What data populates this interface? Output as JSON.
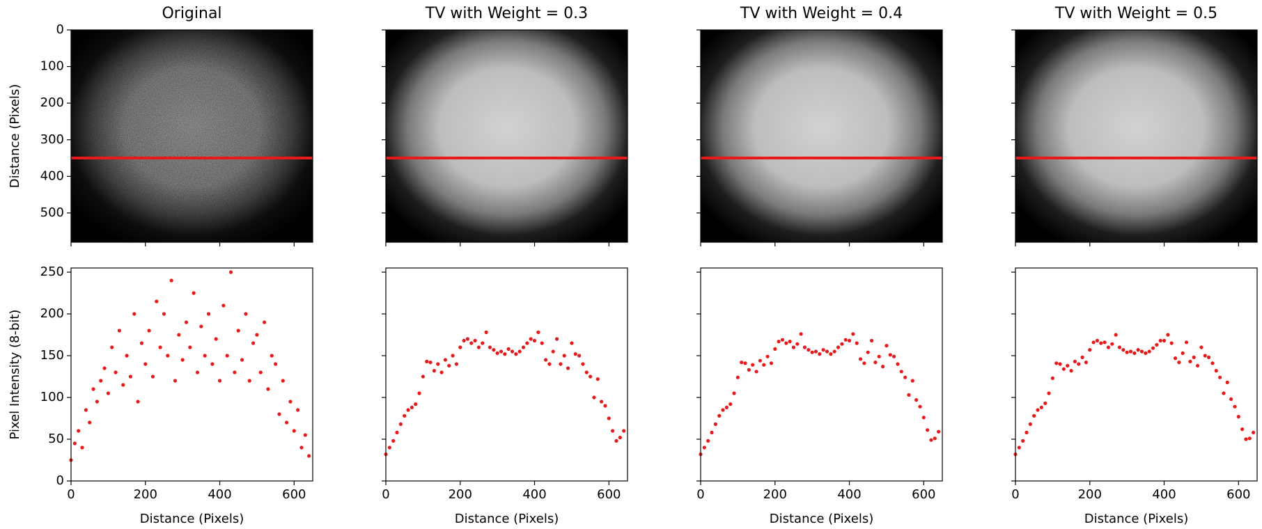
{
  "chart_data": [
    {
      "type": "image",
      "title": "Original",
      "ylabel": "Distance (Pixels)",
      "noise": true,
      "xlim": [
        0,
        650
      ],
      "ylim": [
        580,
        0
      ],
      "xticks": [
        0,
        200,
        400,
        600
      ],
      "yticks": [
        0,
        100,
        200,
        300,
        400,
        500
      ],
      "xtick_labels": false,
      "ytick_labels": true,
      "hline": 350,
      "hline_color": "#e8191b"
    },
    {
      "type": "image",
      "title": "TV with Weight = 0.3",
      "noise": false,
      "xlim": [
        0,
        650
      ],
      "ylim": [
        580,
        0
      ],
      "xticks": [
        0,
        200,
        400,
        600
      ],
      "yticks": [
        0,
        100,
        200,
        300,
        400,
        500
      ],
      "xtick_labels": false,
      "ytick_labels": false,
      "hline": 350,
      "hline_color": "#e8191b"
    },
    {
      "type": "image",
      "title": "TV with Weight = 0.4",
      "noise": false,
      "xlim": [
        0,
        650
      ],
      "ylim": [
        580,
        0
      ],
      "xticks": [
        0,
        200,
        400,
        600
      ],
      "yticks": [
        0,
        100,
        200,
        300,
        400,
        500
      ],
      "xtick_labels": false,
      "ytick_labels": false,
      "hline": 350,
      "hline_color": "#e8191b"
    },
    {
      "type": "image",
      "title": "TV with Weight = 0.5",
      "noise": false,
      "xlim": [
        0,
        650
      ],
      "ylim": [
        580,
        0
      ],
      "xticks": [
        0,
        200,
        400,
        600
      ],
      "yticks": [
        0,
        100,
        200,
        300,
        400,
        500
      ],
      "xtick_labels": false,
      "ytick_labels": false,
      "hline": 350,
      "hline_color": "#e8191b"
    },
    {
      "type": "scatter",
      "xlabel": "Distance (Pixels)",
      "ylabel": "Pixel Intensity (8-bit)",
      "xlim": [
        0,
        650
      ],
      "ylim": [
        0,
        255
      ],
      "xticks": [
        0,
        200,
        400,
        600
      ],
      "yticks": [
        0,
        50,
        100,
        150,
        200,
        250
      ],
      "xtick_labels": true,
      "ytick_labels": true,
      "color": "#e8191b",
      "x": [
        0,
        10,
        20,
        30,
        40,
        50,
        60,
        70,
        80,
        90,
        100,
        110,
        120,
        130,
        140,
        150,
        160,
        170,
        180,
        190,
        200,
        210,
        220,
        230,
        240,
        250,
        260,
        270,
        280,
        290,
        300,
        310,
        320,
        330,
        340,
        350,
        360,
        370,
        380,
        390,
        400,
        410,
        420,
        430,
        440,
        450,
        460,
        470,
        480,
        490,
        500,
        510,
        520,
        530,
        540,
        550,
        560,
        570,
        580,
        590,
        600,
        610,
        620,
        630,
        640
      ],
      "values": [
        25,
        45,
        60,
        40,
        85,
        70,
        110,
        95,
        120,
        135,
        105,
        160,
        130,
        180,
        115,
        150,
        125,
        200,
        95,
        165,
        140,
        180,
        125,
        215,
        160,
        200,
        150,
        240,
        120,
        175,
        145,
        190,
        160,
        225,
        130,
        185,
        150,
        200,
        140,
        170,
        120,
        210,
        150,
        250,
        130,
        180,
        145,
        200,
        120,
        165,
        175,
        130,
        190,
        110,
        150,
        140,
        80,
        120,
        70,
        95,
        60,
        85,
        40,
        55,
        30
      ]
    },
    {
      "type": "scatter",
      "xlabel": "Distance (Pixels)",
      "xlim": [
        0,
        650
      ],
      "ylim": [
        0,
        255
      ],
      "xticks": [
        0,
        200,
        400,
        600
      ],
      "yticks": [
        0,
        50,
        100,
        150,
        200,
        250
      ],
      "xtick_labels": true,
      "ytick_labels": false,
      "color": "#e8191b",
      "x": [
        0,
        10,
        20,
        30,
        40,
        50,
        60,
        70,
        80,
        90,
        100,
        110,
        120,
        130,
        140,
        150,
        160,
        170,
        180,
        190,
        200,
        210,
        220,
        230,
        240,
        250,
        260,
        270,
        280,
        290,
        300,
        310,
        320,
        330,
        340,
        350,
        360,
        370,
        380,
        390,
        400,
        410,
        420,
        430,
        440,
        450,
        460,
        470,
        480,
        490,
        500,
        510,
        520,
        530,
        540,
        550,
        560,
        570,
        580,
        590,
        600,
        610,
        620,
        630,
        640
      ],
      "values": [
        32,
        40,
        48,
        58,
        68,
        78,
        85,
        88,
        92,
        105,
        125,
        143,
        142,
        132,
        140,
        130,
        145,
        138,
        150,
        140,
        160,
        168,
        170,
        165,
        168,
        160,
        165,
        178,
        160,
        157,
        153,
        155,
        152,
        158,
        155,
        152,
        155,
        160,
        165,
        170,
        168,
        178,
        165,
        145,
        140,
        155,
        170,
        140,
        150,
        135,
        165,
        152,
        150,
        140,
        130,
        125,
        100,
        122,
        95,
        90,
        75,
        60,
        48,
        52,
        60
      ]
    },
    {
      "type": "scatter",
      "xlabel": "Distance (Pixels)",
      "xlim": [
        0,
        650
      ],
      "ylim": [
        0,
        255
      ],
      "xticks": [
        0,
        200,
        400,
        600
      ],
      "yticks": [
        0,
        50,
        100,
        150,
        200,
        250
      ],
      "xtick_labels": true,
      "ytick_labels": false,
      "color": "#e8191b",
      "x": [
        0,
        10,
        20,
        30,
        40,
        50,
        60,
        70,
        80,
        90,
        100,
        110,
        120,
        130,
        140,
        150,
        160,
        170,
        180,
        190,
        200,
        210,
        220,
        230,
        240,
        250,
        260,
        270,
        280,
        290,
        300,
        310,
        320,
        330,
        340,
        350,
        360,
        370,
        380,
        390,
        400,
        410,
        420,
        430,
        440,
        450,
        460,
        470,
        480,
        490,
        500,
        510,
        520,
        530,
        540,
        550,
        560,
        570,
        580,
        590,
        600,
        610,
        620,
        630,
        640
      ],
      "values": [
        32,
        40,
        48,
        58,
        68,
        78,
        85,
        88,
        92,
        105,
        124,
        142,
        141,
        133,
        139,
        131,
        144,
        139,
        149,
        141,
        158,
        167,
        169,
        165,
        167,
        160,
        164,
        176,
        160,
        157,
        154,
        155,
        152,
        157,
        155,
        152,
        155,
        160,
        164,
        169,
        168,
        176,
        165,
        146,
        141,
        154,
        168,
        142,
        149,
        137,
        162,
        151,
        149,
        140,
        131,
        124,
        103,
        120,
        97,
        89,
        76,
        61,
        49,
        51,
        59
      ]
    },
    {
      "type": "scatter",
      "xlabel": "Distance (Pixels)",
      "xlim": [
        0,
        650
      ],
      "ylim": [
        0,
        255
      ],
      "xticks": [
        0,
        200,
        400,
        600
      ],
      "yticks": [
        0,
        50,
        100,
        150,
        200,
        250
      ],
      "xtick_labels": true,
      "ytick_labels": false,
      "color": "#e8191b",
      "x": [
        0,
        10,
        20,
        30,
        40,
        50,
        60,
        70,
        80,
        90,
        100,
        110,
        120,
        130,
        140,
        150,
        160,
        170,
        180,
        190,
        200,
        210,
        220,
        230,
        240,
        250,
        260,
        270,
        280,
        290,
        300,
        310,
        320,
        330,
        340,
        350,
        360,
        370,
        380,
        390,
        400,
        410,
        420,
        430,
        440,
        450,
        460,
        470,
        480,
        490,
        500,
        510,
        520,
        530,
        540,
        550,
        560,
        570,
        580,
        590,
        600,
        610,
        620,
        630,
        640
      ],
      "values": [
        32,
        40,
        48,
        58,
        68,
        78,
        85,
        88,
        93,
        105,
        123,
        141,
        140,
        134,
        138,
        132,
        143,
        140,
        148,
        142,
        157,
        166,
        168,
        165,
        166,
        160,
        164,
        175,
        160,
        157,
        154,
        155,
        153,
        157,
        155,
        153,
        155,
        159,
        163,
        168,
        168,
        175,
        165,
        147,
        142,
        153,
        166,
        143,
        148,
        138,
        160,
        150,
        148,
        141,
        132,
        124,
        105,
        118,
        98,
        89,
        77,
        62,
        50,
        51,
        58
      ]
    }
  ]
}
